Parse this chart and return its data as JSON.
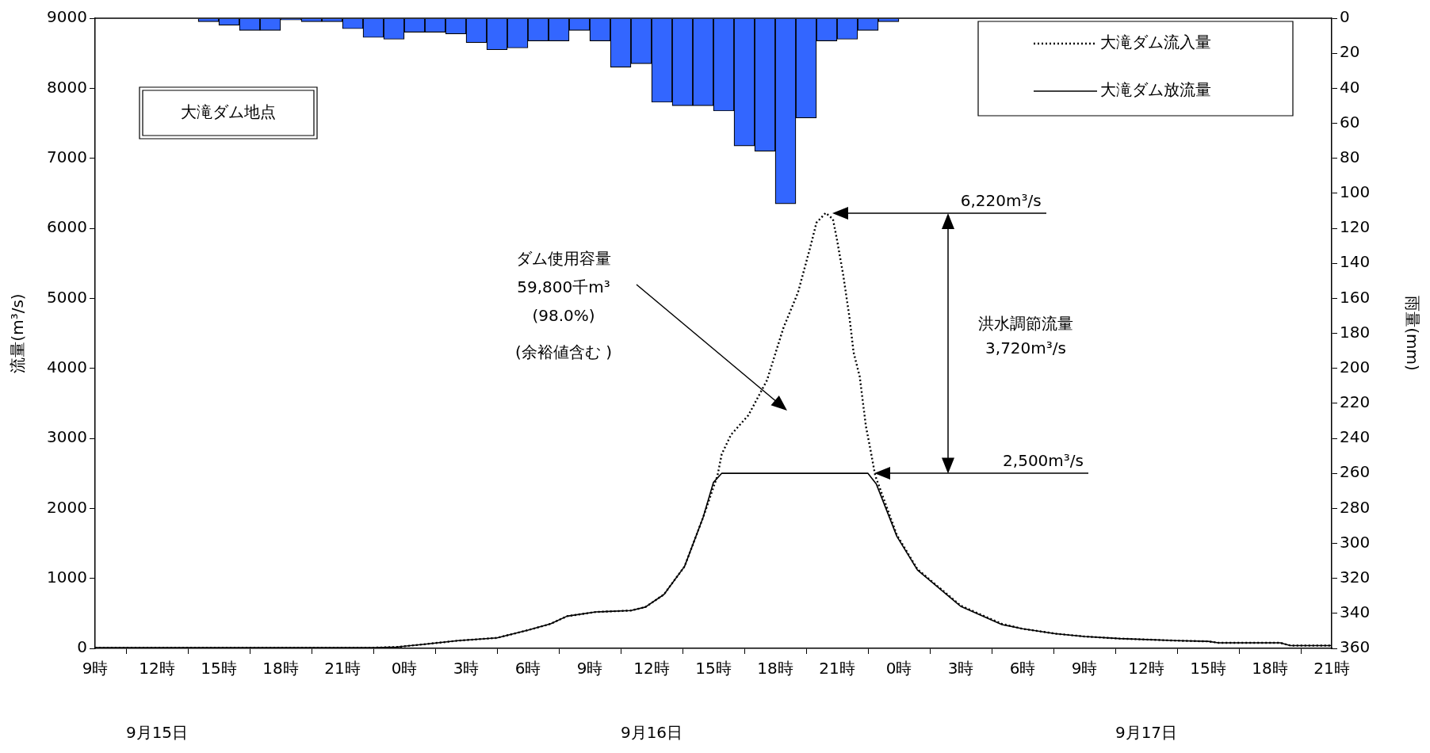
{
  "chart_data": {
    "type": "line",
    "ylabel": "流量(m³/s)",
    "y2label": "雨量(mm)",
    "xlim": [
      "--09-15T09:00",
      "--09-17T21:00"
    ],
    "xticks": [
      {
        "value": "--09-15T09:00",
        "label": "9時"
      },
      {
        "value": "--09-15T12:00",
        "label": "12時"
      },
      {
        "value": "--09-15T15:00",
        "label": "15時"
      },
      {
        "value": "--09-15T18:00",
        "label": "18時"
      },
      {
        "value": "--09-15T21:00",
        "label": "21時"
      },
      {
        "value": "--09-16T00:00",
        "label": "0時"
      },
      {
        "value": "--09-16T03:00",
        "label": "3時"
      },
      {
        "value": "--09-16T06:00",
        "label": "6時"
      },
      {
        "value": "--09-16T09:00",
        "label": "9時"
      },
      {
        "value": "--09-16T12:00",
        "label": "12時"
      },
      {
        "value": "--09-16T15:00",
        "label": "15時"
      },
      {
        "value": "--09-16T18:00",
        "label": "18時"
      },
      {
        "value": "--09-16T21:00",
        "label": "21時"
      },
      {
        "value": "--09-17T00:00",
        "label": "0時"
      },
      {
        "value": "--09-17T03:00",
        "label": "3時"
      },
      {
        "value": "--09-17T06:00",
        "label": "6時"
      },
      {
        "value": "--09-17T09:00",
        "label": "9時"
      },
      {
        "value": "--09-17T12:00",
        "label": "12時"
      },
      {
        "value": "--09-17T15:00",
        "label": "15時"
      },
      {
        "value": "--09-17T18:00",
        "label": "18時"
      },
      {
        "value": "--09-17T21:00",
        "label": "21時"
      }
    ],
    "ylim": [
      0,
      9000
    ],
    "yticks": [
      0,
      1000,
      2000,
      3000,
      4000,
      5000,
      6000,
      7000,
      8000,
      9000
    ],
    "y2lim": [
      360,
      0
    ],
    "y2ticks": [
      0,
      20,
      40,
      60,
      80,
      100,
      120,
      140,
      160,
      180,
      200,
      220,
      240,
      260,
      280,
      300,
      320,
      340,
      360
    ],
    "grid": false,
    "legend": "top right",
    "marker": "none",
    "series": [
      {
        "type": "bar",
        "axis": "y2",
        "color": "#3366ff",
        "x": [
          "--09-15T14:30",
          "--09-15T15:30",
          "--09-15T16:30",
          "--09-15T17:30",
          "--09-15T18:30",
          "--09-15T19:30",
          "--09-15T20:30",
          "--09-15T21:30",
          "--09-15T22:30",
          "--09-15T23:30",
          "--09-16T00:30",
          "--09-16T01:30",
          "--09-16T02:30",
          "--09-16T03:30",
          "--09-16T04:30",
          "--09-16T05:30",
          "--09-16T06:30",
          "--09-16T07:30",
          "--09-16T08:30",
          "--09-16T09:30",
          "--09-16T10:30",
          "--09-16T11:30",
          "--09-16T12:30",
          "--09-16T13:30",
          "--09-16T14:30",
          "--09-16T15:30",
          "--09-16T16:30",
          "--09-16T17:30",
          "--09-16T18:30",
          "--09-16T19:30",
          "--09-16T20:30",
          "--09-16T21:30",
          "--09-16T22:30",
          "--09-16T23:30"
        ],
        "values": [
          2,
          4,
          7,
          7,
          1,
          2,
          2,
          6,
          11,
          12,
          8,
          8,
          9,
          14,
          18,
          17,
          13,
          13,
          7,
          13,
          28,
          26,
          48,
          50,
          50,
          53,
          73,
          76,
          106,
          57,
          13,
          12,
          7,
          2
        ]
      },
      {
        "name": "大滝ダム流入量",
        "color": "#000000",
        "line_style": "dotted",
        "x": [
          "--09-15T09:00",
          "--09-15T22:36",
          "--09-15T23:39",
          "--09-16T01:00",
          "--09-16T02:36",
          "--09-16T04:30",
          "--09-16T06:00",
          "--09-16T07:06",
          "--09-16T07:54",
          "--09-16T09:18",
          "--09-16T11:00",
          "--09-16T11:42",
          "--09-16T12:36",
          "--09-16T13:36",
          "--09-16T14:30",
          "--09-16T15:12",
          "--09-16T15:24",
          "--09-16T15:51",
          "--09-16T16:42",
          "--09-16T17:36",
          "--09-16T18:24",
          "--09-16T19:06",
          "--09-16T19:42",
          "--09-16T20:00",
          "--09-16T20:27",
          "--09-16T20:48",
          "--09-16T21:00",
          "--09-16T21:18",
          "--09-16T21:36",
          "--09-16T21:48",
          "--09-16T22:06",
          "--09-16T22:24",
          "--09-16T22:36",
          "--09-16T22:51",
          "--09-16T23:54",
          "--09-17T00:54",
          "--09-17T03:00",
          "--09-17T05:00",
          "--09-17T06:00",
          "--09-17T07:36",
          "--09-17T09:00",
          "--09-17T10:42",
          "--09-17T13:30",
          "--09-17T15:00",
          "--09-17T15:30",
          "--09-17T18:30",
          "--09-17T19:00",
          "--09-17T21:00"
        ],
        "values": [
          10,
          10,
          20,
          60,
          110,
          150,
          260,
          350,
          460,
          520,
          540,
          590,
          770,
          1170,
          1870,
          2470,
          2770,
          3050,
          3330,
          3830,
          4580,
          5080,
          5730,
          6080,
          6220,
          6130,
          5830,
          5330,
          4730,
          4230,
          3880,
          3170,
          2870,
          2470,
          1620,
          1130,
          610,
          350,
          280,
          210,
          170,
          140,
          110,
          100,
          80,
          80,
          40,
          40
        ]
      },
      {
        "name": "大滝ダム放流量",
        "color": "#000000",
        "line_style": "solid",
        "x": [
          "--09-15T09:00",
          "--09-15T22:36",
          "--09-15T23:39",
          "--09-16T01:00",
          "--09-16T02:36",
          "--09-16T04:30",
          "--09-16T06:00",
          "--09-16T07:06",
          "--09-16T07:54",
          "--09-16T09:18",
          "--09-16T11:00",
          "--09-16T11:42",
          "--09-16T12:36",
          "--09-16T13:36",
          "--09-16T14:30",
          "--09-16T15:00",
          "--09-16T15:24",
          "--09-16T22:30",
          "--09-16T22:54",
          "--09-16T23:54",
          "--09-17T00:54",
          "--09-17T03:00",
          "--09-17T05:00",
          "--09-17T06:00",
          "--09-17T07:36",
          "--09-17T09:00",
          "--09-17T10:42",
          "--09-17T13:30",
          "--09-17T15:00",
          "--09-17T15:30",
          "--09-17T18:30",
          "--09-17T19:00",
          "--09-17T21:00"
        ],
        "values": [
          10,
          10,
          20,
          60,
          110,
          150,
          260,
          350,
          460,
          520,
          540,
          590,
          770,
          1170,
          1870,
          2370,
          2500,
          2500,
          2350,
          1600,
          1120,
          600,
          340,
          280,
          210,
          170,
          140,
          110,
          100,
          80,
          80,
          40,
          40
        ]
      }
    ],
    "annotations": [
      "大滝ダム地点",
      "6,220m³/s",
      "2,500m³/s",
      "ダム使用容量\n59,800千m³\n(98.0%)\n(余裕値含む )",
      "洪水調節流量\n3,720m³/s",
      "9月15日",
      "9月16日",
      "9月17日"
    ]
  }
}
